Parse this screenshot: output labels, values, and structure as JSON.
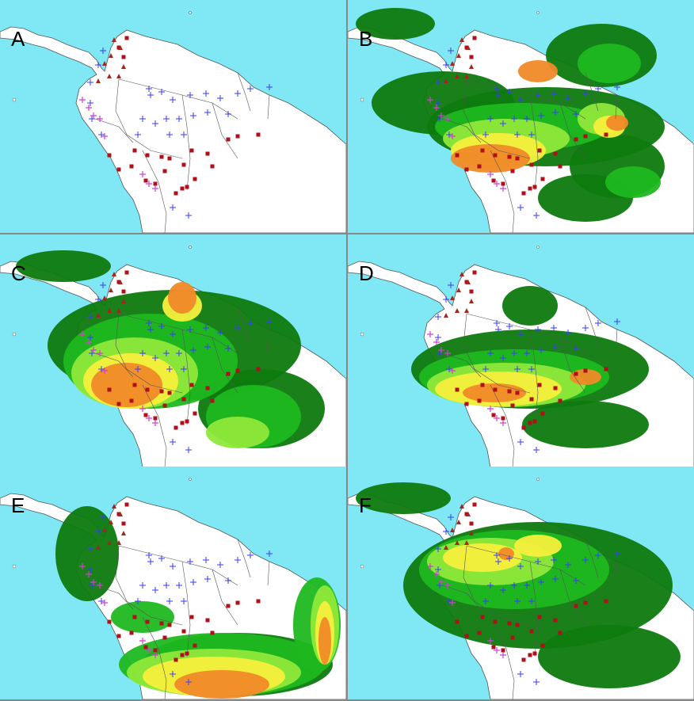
{
  "panels": [
    {
      "label": "A",
      "layers": []
    },
    {
      "label": "B",
      "layers": [
        "darkgreen",
        "green",
        "lime",
        "yellow",
        "orange"
      ]
    },
    {
      "label": "C",
      "layers": [
        "darkgreen",
        "green",
        "lime",
        "yellow",
        "orange"
      ]
    },
    {
      "label": "D",
      "layers": [
        "darkgreen",
        "green",
        "lime",
        "yellow",
        "orange"
      ]
    },
    {
      "label": "E",
      "layers": [
        "darkgreen",
        "green",
        "lime",
        "yellow",
        "orange"
      ]
    },
    {
      "label": "F",
      "layers": [
        "darkgreen",
        "green",
        "lime",
        "yellow",
        "orange"
      ]
    }
  ],
  "colors": {
    "ocean": "#7fe8f4",
    "land": "#ffffff",
    "border": "#555555",
    "darkgreen": "#0e7a0e",
    "green": "#1fb81f",
    "lime": "#8fe83a",
    "yellow": "#f5f03c",
    "orange": "#f08a28",
    "marker_square": "#b0101a",
    "marker_triangle": "#a0281e",
    "marker_cross_blue": "#3a3aff",
    "marker_cross_magenta": "#d040d0"
  },
  "markers": {
    "types": [
      "square",
      "triangle",
      "cross-blue",
      "cross-magenta"
    ]
  }
}
